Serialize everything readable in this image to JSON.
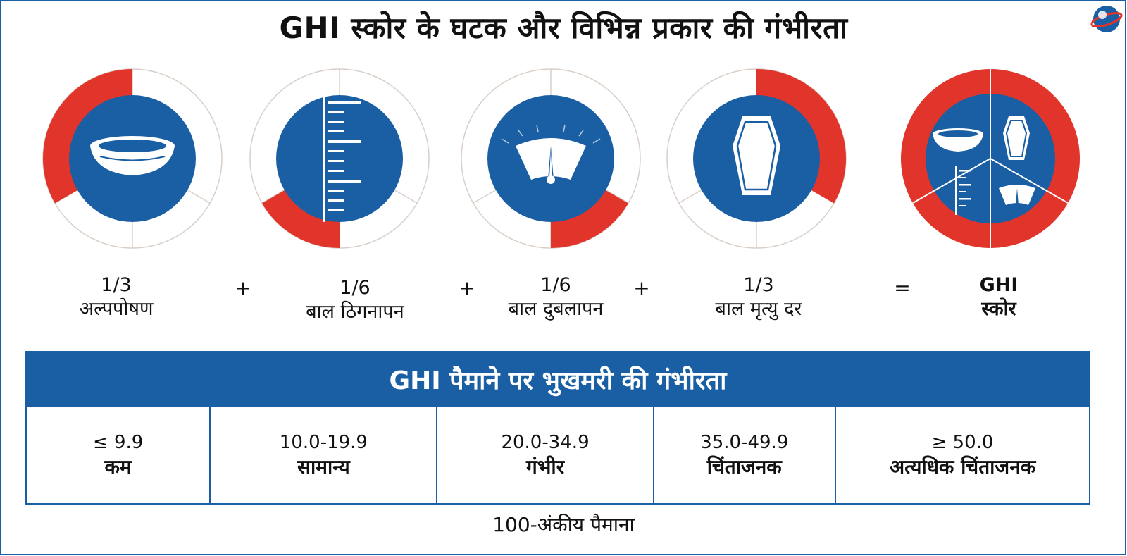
{
  "title": "GHI स्कोर के घटक और विभिन्न प्रकार की गंभीरता",
  "colors": {
    "primary_blue": "#1a5fa3",
    "accent_red": "#e1342a",
    "ring_outline": "#d9cfc8"
  },
  "components": [
    {
      "fraction": "1/3",
      "label": "अल्पपोषण",
      "icon": "bowl-icon",
      "shown_share": 0.333
    },
    {
      "fraction": "1/6",
      "label": "बाल ठिगनापन",
      "icon": "height-scale-icon",
      "shown_share": 0.167
    },
    {
      "fraction": "1/6",
      "label": "बाल दुबलापन",
      "icon": "weighing-scale-icon",
      "shown_share": 0.167
    },
    {
      "fraction": "1/3",
      "label": "बाल मृत्यु दर",
      "icon": "coffin-icon",
      "shown_share": 0.333
    }
  ],
  "operators": {
    "plus": "+",
    "equals": "="
  },
  "result": {
    "line1": "GHI",
    "line2": "स्कोर",
    "icon": "ghi-composite-icon"
  },
  "scale": {
    "heading": "GHI पैमाने पर भुखमरी की गंभीरता",
    "levels": [
      {
        "range": "≤ 9.9",
        "label": "कम"
      },
      {
        "range": "10.0-19.9",
        "label": "सामान्य"
      },
      {
        "range": "20.0-34.9",
        "label": "गंभीर"
      },
      {
        "range": "35.0-49.9",
        "label": "चिंताजनक"
      },
      {
        "range": "≥ 50.0",
        "label": "अत्यधिक चिंताजनक"
      }
    ],
    "footnote": "100-अंकीय पैमाना"
  }
}
